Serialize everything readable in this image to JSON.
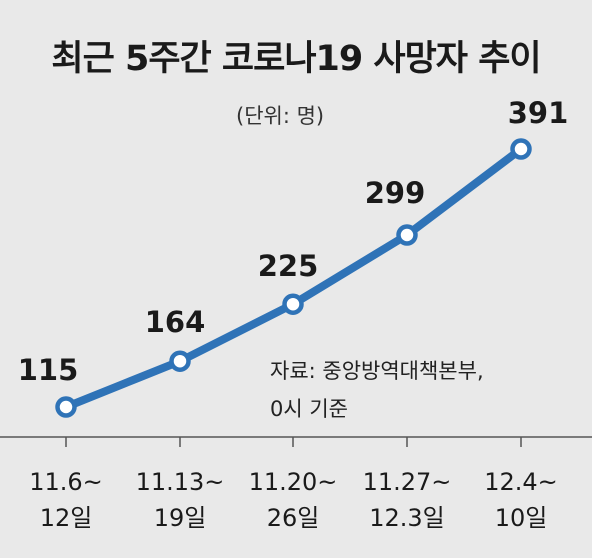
{
  "chart_data": {
    "type": "line",
    "title": "최근 5주간 코로나19 사망자 추이",
    "unit_note": "(단위: 명)",
    "categories": [
      [
        "11.6~",
        "12일"
      ],
      [
        "11.13~",
        "19일"
      ],
      [
        "11.20~",
        "26일"
      ],
      [
        "11.27~",
        "12.3일"
      ],
      [
        "12.4~",
        "10일"
      ]
    ],
    "values": [
      115,
      164,
      225,
      299,
      391
    ],
    "source_lines": [
      "자료: 중앙방역대책본부,",
      "0시 기준"
    ],
    "colors": {
      "line": "#2f73b7",
      "marker_fill": "#ffffff",
      "axis": "#555555",
      "background": "#e9e9e9"
    }
  }
}
